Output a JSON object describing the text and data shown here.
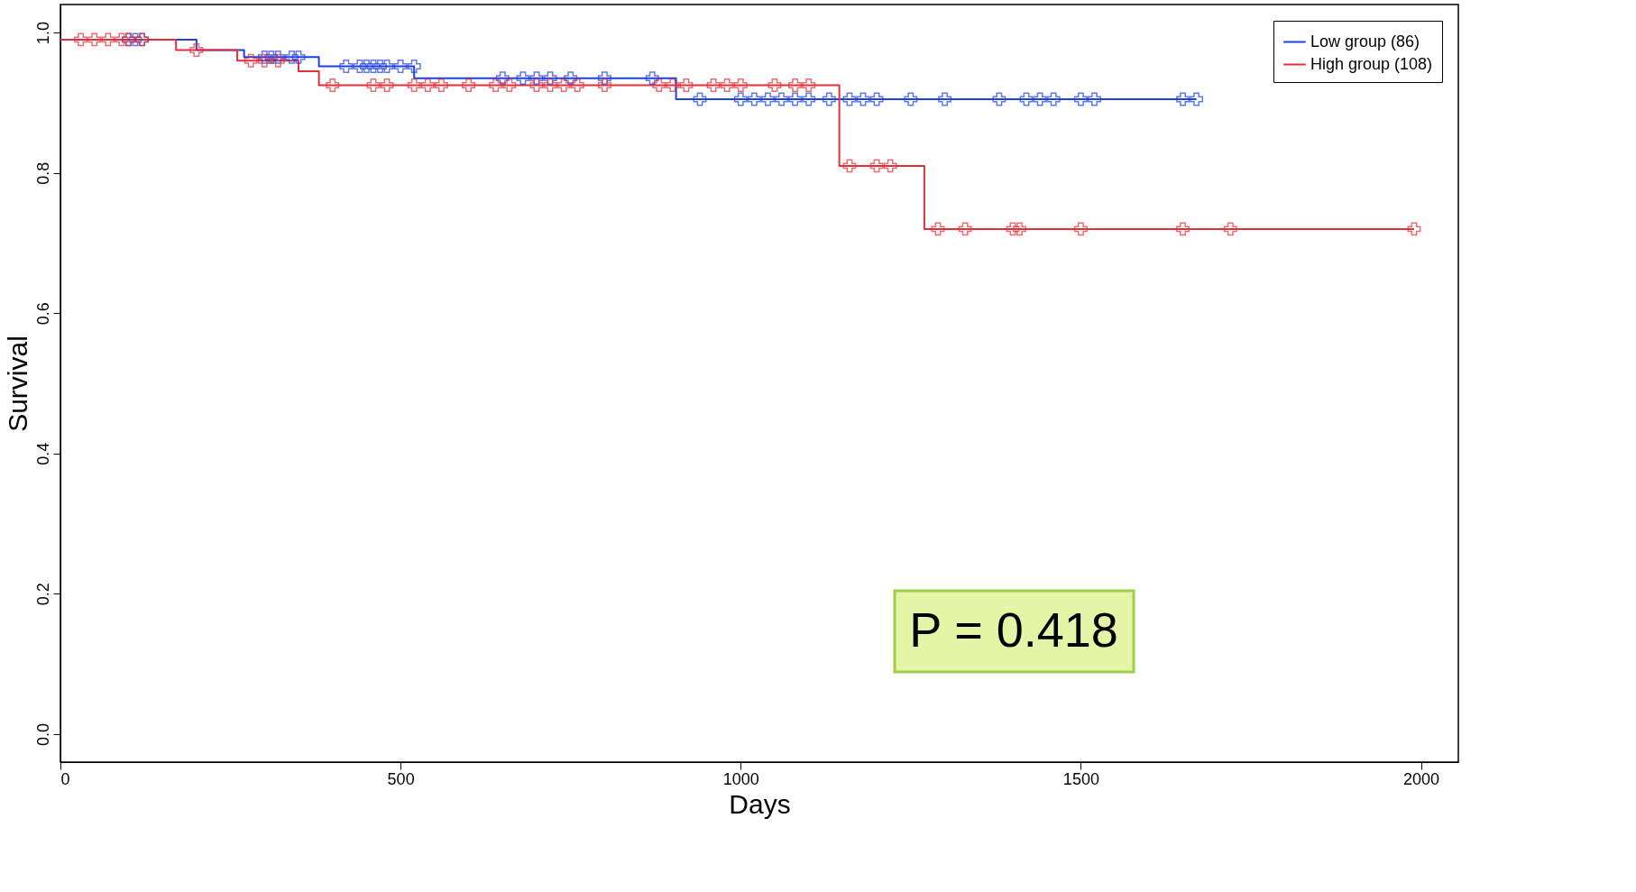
{
  "chart_data": {
    "type": "step",
    "xlabel": "Days",
    "ylabel": "Survival",
    "xlim": [
      0,
      2055
    ],
    "ylim": [
      -0.04,
      1.04
    ],
    "xticks": [
      0,
      500,
      1000,
      1500,
      2000
    ],
    "yticks": [
      {
        "value": 0,
        "label": "0.0"
      },
      {
        "value": 0.2,
        "label": "0.2"
      },
      {
        "value": 0.4,
        "label": "0.4"
      },
      {
        "value": 0.6,
        "label": "0.6"
      },
      {
        "value": 0.8,
        "label": "0.8"
      },
      {
        "value": 1,
        "label": "1.0"
      }
    ],
    "grid": false,
    "legend": "top right",
    "line_style": "solid",
    "annotations": [
      "P = 0.418"
    ],
    "series": [
      {
        "name": "Low group (86)",
        "color": "#1f3fe0",
        "x": [
          0,
          200,
          270,
          380,
          520,
          905,
          1670
        ],
        "values": [
          0.99,
          0.975,
          0.965,
          0.952,
          0.935,
          0.905,
          0.905
        ]
      },
      {
        "name": "High group (108)",
        "color": "#e0303a",
        "x": [
          0,
          170,
          260,
          350,
          380,
          1145,
          1270,
          1990
        ],
        "values": [
          0.99,
          0.975,
          0.96,
          0.945,
          0.925,
          0.81,
          0.72,
          0.72
        ]
      },
      {
        "color": "#1f3fe0",
        "type": "scatter",
        "marker": "cross",
        "x": [
          100,
          110,
          120,
          300,
          310,
          320,
          340,
          350,
          420,
          440,
          450,
          460,
          470,
          480,
          500,
          520,
          650,
          680,
          700,
          720,
          750,
          800,
          870,
          940,
          1000,
          1020,
          1040,
          1060,
          1080,
          1100,
          1130,
          1160,
          1180,
          1200,
          1250,
          1300,
          1380,
          1420,
          1440,
          1460,
          1500,
          1520,
          1650,
          1670
        ],
        "values": [
          0.99,
          0.99,
          0.99,
          0.965,
          0.965,
          0.965,
          0.965,
          0.965,
          0.952,
          0.952,
          0.952,
          0.952,
          0.952,
          0.952,
          0.952,
          0.952,
          0.935,
          0.935,
          0.935,
          0.935,
          0.935,
          0.935,
          0.935,
          0.905,
          0.905,
          0.905,
          0.905,
          0.905,
          0.905,
          0.905,
          0.905,
          0.905,
          0.905,
          0.905,
          0.905,
          0.905,
          0.905,
          0.905,
          0.905,
          0.905,
          0.905,
          0.905,
          0.905,
          0.905
        ]
      },
      {
        "color": "#e0303a",
        "type": "scatter",
        "marker": "cross",
        "x": [
          30,
          50,
          70,
          90,
          100,
          120,
          200,
          280,
          300,
          320,
          400,
          460,
          480,
          520,
          540,
          560,
          600,
          640,
          660,
          700,
          720,
          740,
          760,
          800,
          880,
          900,
          920,
          960,
          980,
          1000,
          1050,
          1080,
          1100,
          1160,
          1200,
          1220,
          1290,
          1330,
          1400,
          1410,
          1500,
          1650,
          1720,
          1990
        ],
        "values": [
          0.99,
          0.99,
          0.99,
          0.99,
          0.99,
          0.99,
          0.975,
          0.96,
          0.96,
          0.96,
          0.925,
          0.925,
          0.925,
          0.925,
          0.925,
          0.925,
          0.925,
          0.925,
          0.925,
          0.925,
          0.925,
          0.925,
          0.925,
          0.925,
          0.925,
          0.925,
          0.925,
          0.925,
          0.925,
          0.925,
          0.925,
          0.925,
          0.925,
          0.81,
          0.81,
          0.81,
          0.72,
          0.72,
          0.72,
          0.72,
          0.72,
          0.72,
          0.72,
          0.72
        ]
      }
    ]
  }
}
